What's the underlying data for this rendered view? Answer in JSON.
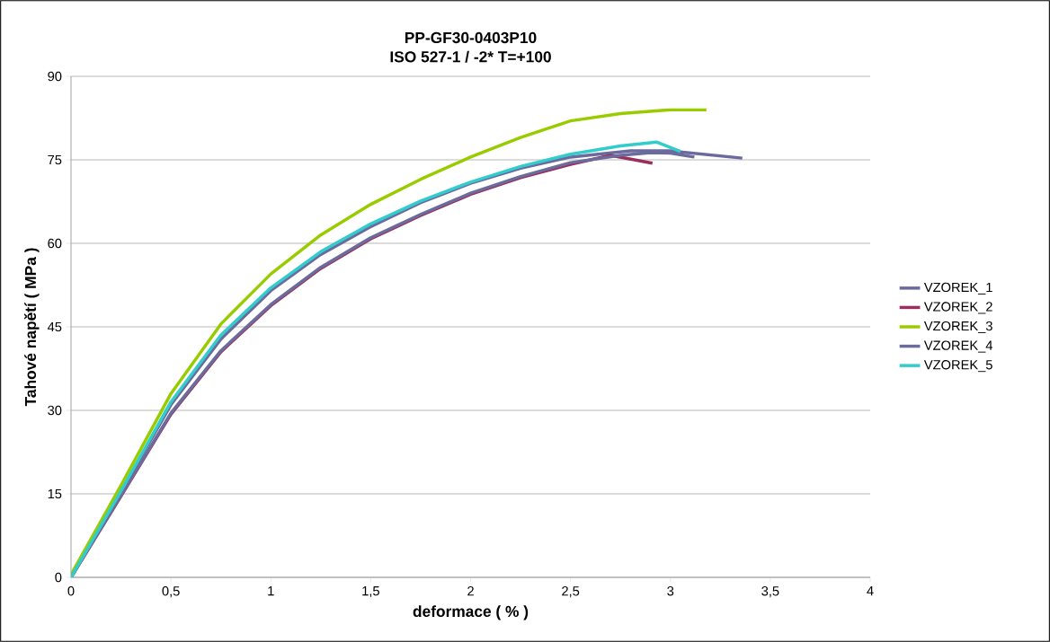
{
  "chart_data": {
    "type": "line",
    "title": "PP-GF30-0403P10",
    "subtitle": "ISO 527-1 / -2*     T=+100",
    "xlabel": "deformace ( % )",
    "ylabel": "Tahové napětí  ( MPa )",
    "xlim": [
      0,
      4
    ],
    "ylim": [
      0,
      90
    ],
    "xticks": [
      0,
      {
        "value": 0.5,
        "label": "0,5"
      },
      1,
      {
        "value": 1.5,
        "label": "1,5"
      },
      2,
      {
        "value": 2.5,
        "label": "2,5"
      },
      3,
      {
        "value": 3.5,
        "label": "3,5"
      },
      4
    ],
    "yticks": [
      0,
      15,
      30,
      45,
      60,
      75,
      90
    ],
    "grid": "y",
    "legend": "right",
    "marker": "none",
    "line_style": "solid",
    "series": [
      {
        "name": "VZOREK_1",
        "color": "#6a6a9e",
        "x": [
          0,
          0.25,
          0.5,
          0.75,
          1,
          1.25,
          1.5,
          1.75,
          2,
          2.25,
          2.5,
          2.8,
          3.0,
          3.36
        ],
        "values": [
          0,
          15.3,
          31,
          42.8,
          51.5,
          58,
          63,
          67.3,
          70.8,
          73.5,
          75.5,
          76.6,
          76.6,
          75.3
        ]
      },
      {
        "name": "VZOREK_2",
        "color": "#9a2e5e",
        "x": [
          0,
          0.25,
          0.5,
          0.75,
          1,
          1.25,
          1.5,
          1.75,
          2,
          2.25,
          2.5,
          2.7,
          2.91
        ],
        "values": [
          0,
          14.6,
          29.3,
          40.5,
          48.8,
          55.5,
          60.8,
          65,
          68.8,
          71.8,
          74.2,
          75.8,
          74.4
        ]
      },
      {
        "name": "VZOREK_3",
        "color": "#99cc00",
        "x": [
          0,
          0.25,
          0.5,
          0.75,
          1,
          1.25,
          1.5,
          1.75,
          2,
          2.25,
          2.5,
          2.75,
          3,
          3.18
        ],
        "values": [
          0.5,
          16.5,
          33,
          45.5,
          54.5,
          61.5,
          67,
          71.5,
          75.5,
          79,
          82,
          83.3,
          84,
          84
        ]
      },
      {
        "name": "VZOREK_4",
        "color": "#6b6b9c",
        "x": [
          0,
          0.25,
          0.5,
          0.75,
          1,
          1.25,
          1.5,
          1.75,
          2,
          2.25,
          2.5,
          2.75,
          2.9,
          3.0,
          3.12
        ],
        "values": [
          0,
          14.7,
          29.5,
          40.7,
          49,
          55.7,
          61,
          65.2,
          69,
          72,
          74.5,
          75.8,
          76.3,
          76.2,
          75.5
        ]
      },
      {
        "name": "VZOREK_5",
        "color": "#33cccc",
        "x": [
          0,
          0.25,
          0.5,
          0.75,
          1,
          1.25,
          1.5,
          1.75,
          2,
          2.25,
          2.5,
          2.75,
          2.93,
          3.05
        ],
        "values": [
          0,
          15.5,
          31.5,
          43.5,
          52,
          58.5,
          63.5,
          67.6,
          71,
          73.8,
          76,
          77.5,
          78.2,
          76.5
        ]
      }
    ]
  }
}
